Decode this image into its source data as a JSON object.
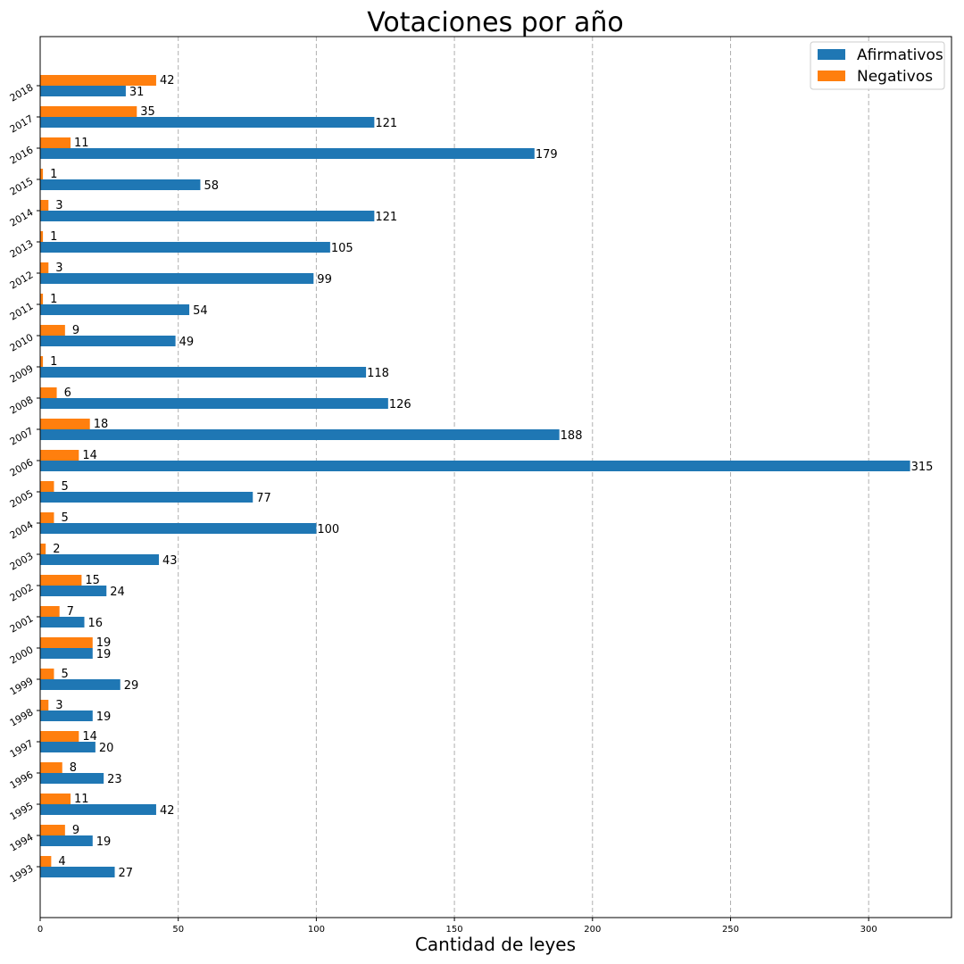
{
  "chart_data": {
    "type": "bar",
    "orientation": "horizontal",
    "title": "Votaciones por año",
    "xlabel": "Cantidad de leyes",
    "ylabel": "",
    "xlim": [
      0,
      330
    ],
    "xticks": [
      0,
      50,
      100,
      150,
      200,
      250,
      300
    ],
    "grid": "vertical-dashed",
    "legend_position": "top-right",
    "categories": [
      "1993",
      "1994",
      "1995",
      "1996",
      "1997",
      "1998",
      "1999",
      "2000",
      "2001",
      "2002",
      "2003",
      "2004",
      "2005",
      "2006",
      "2007",
      "2008",
      "2009",
      "2010",
      "2011",
      "2012",
      "2013",
      "2014",
      "2015",
      "2016",
      "2017",
      "2018"
    ],
    "series": [
      {
        "name": "Afirmativos",
        "color": "#1f77b4",
        "values": [
          27,
          19,
          42,
          23,
          20,
          19,
          29,
          19,
          16,
          24,
          43,
          100,
          77,
          315,
          188,
          126,
          118,
          49,
          54,
          99,
          105,
          121,
          58,
          179,
          121,
          31
        ]
      },
      {
        "name": "Negativos",
        "color": "#ff7f0e",
        "values": [
          4,
          9,
          11,
          8,
          14,
          3,
          5,
          19,
          7,
          15,
          2,
          5,
          5,
          14,
          18,
          6,
          1,
          9,
          1,
          3,
          1,
          3,
          1,
          11,
          35,
          42
        ]
      }
    ]
  }
}
